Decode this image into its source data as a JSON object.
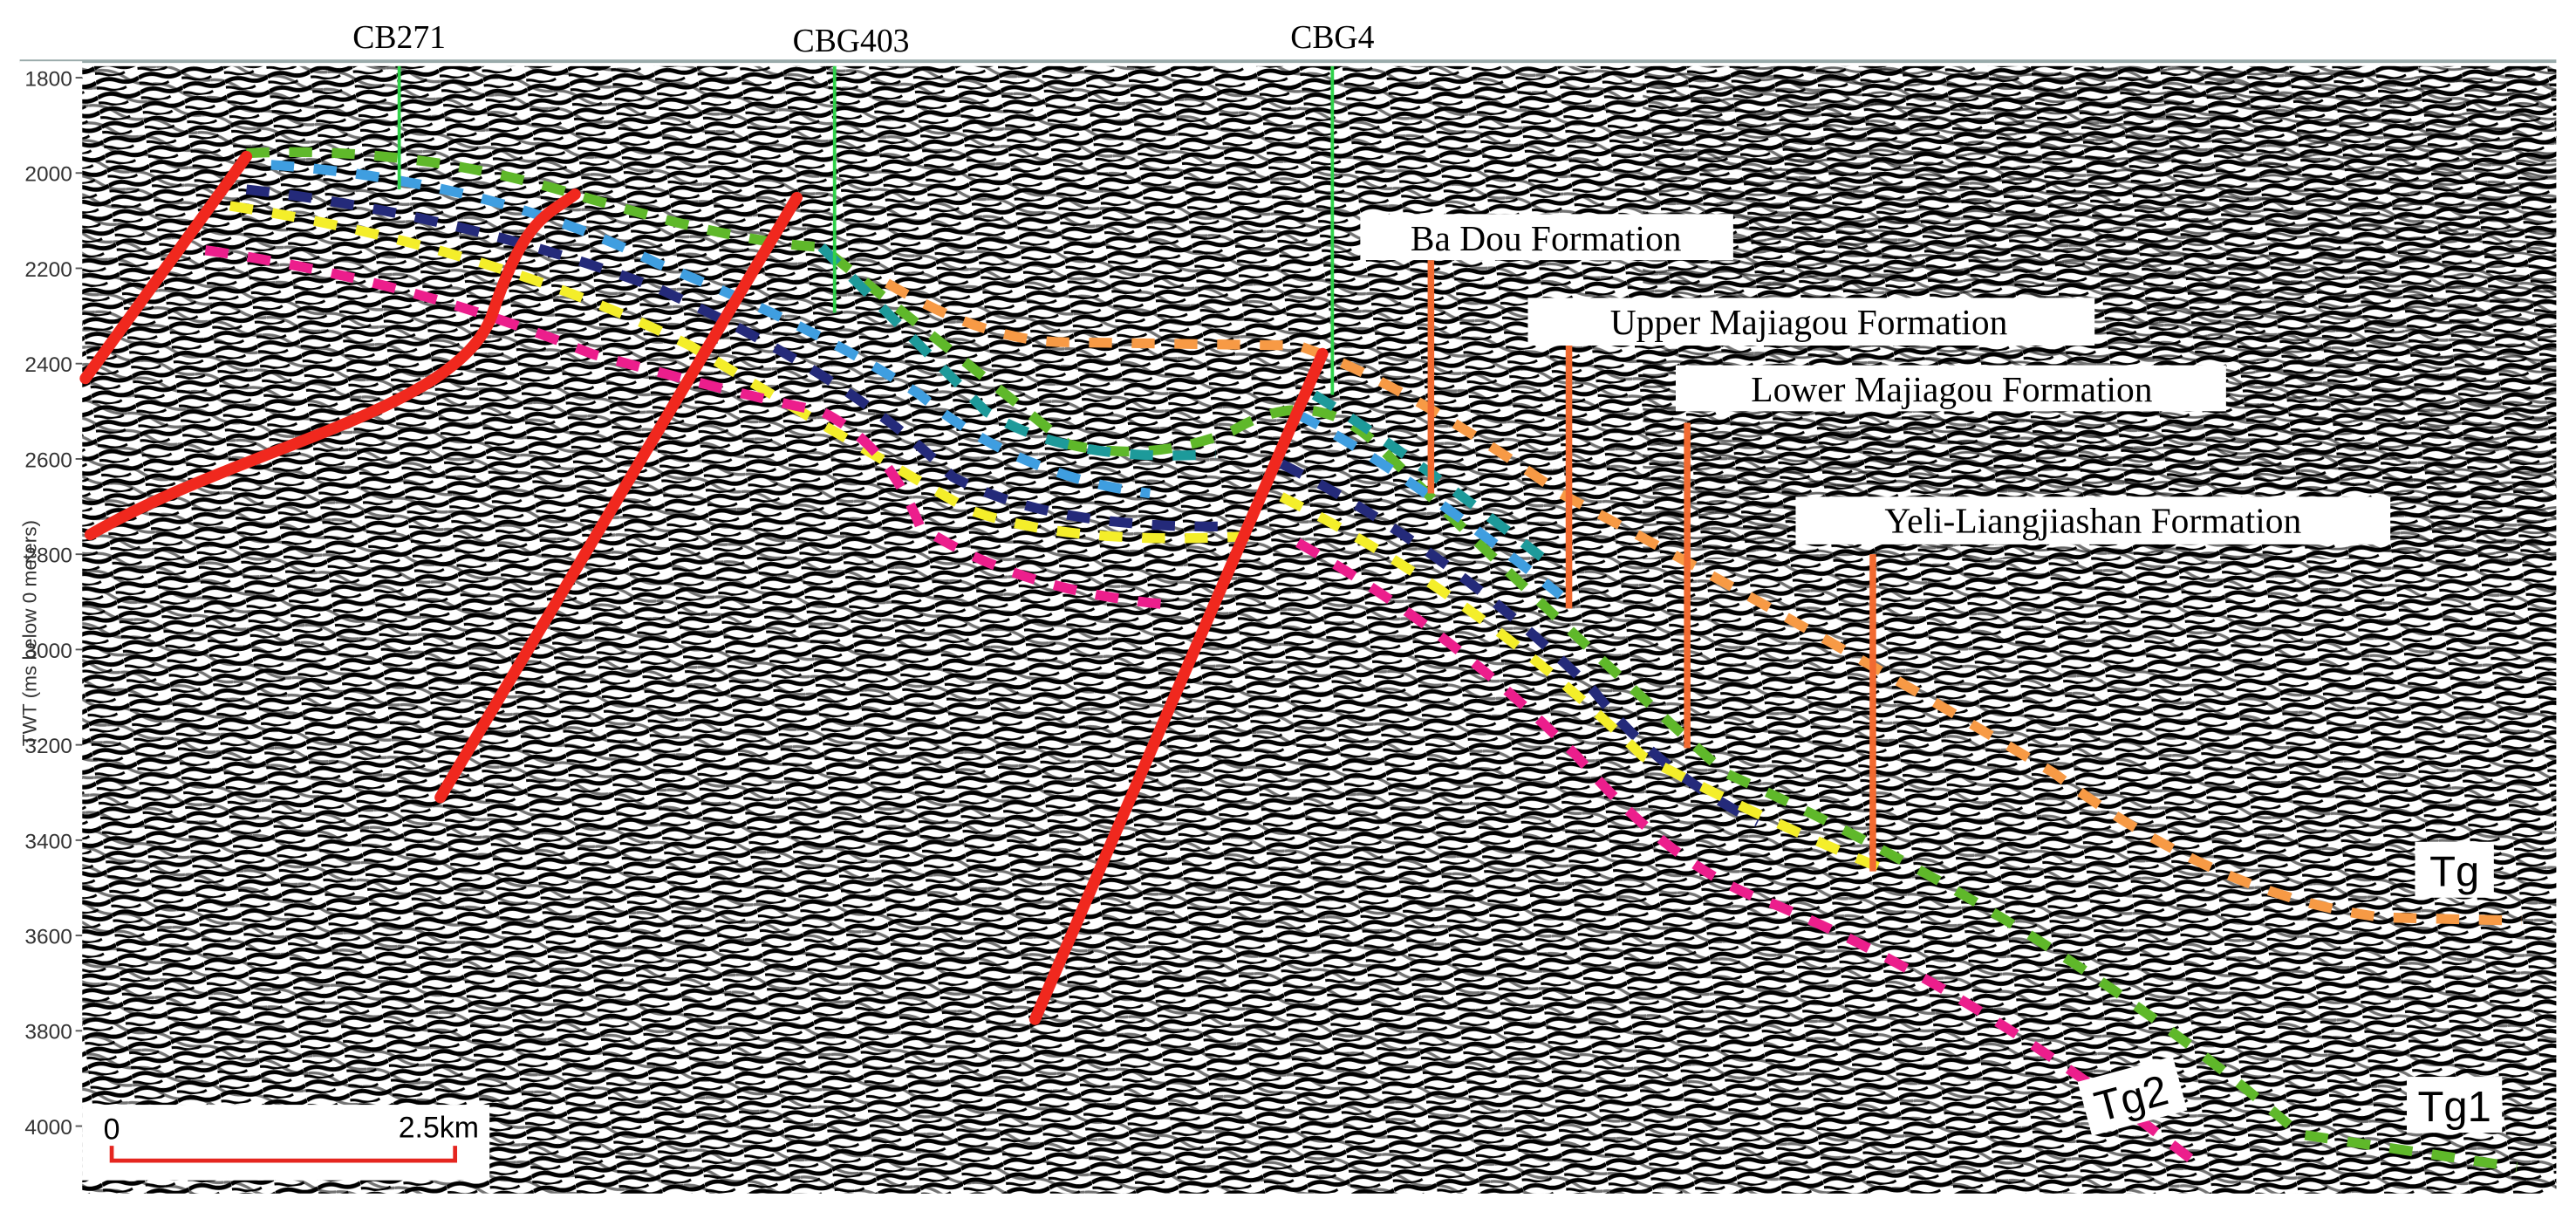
{
  "axis": {
    "label": "TWT (ms below 0 meters)",
    "ticks": [
      1800,
      2000,
      2200,
      2400,
      2600,
      2800,
      3000,
      3200,
      3400,
      3600,
      3800,
      4000
    ]
  },
  "wells": [
    "CB271",
    "CBG403",
    "CBG4"
  ],
  "formations": [
    "Ba Dou Formation",
    "Upper Majiagou Formation",
    "Lower Majiagou Formation",
    "Yeli-Liangjiashan  Formation"
  ],
  "horizons": [
    "Tg",
    "Tg1",
    "Tg2"
  ],
  "scale_bar": {
    "start": "0",
    "end": "2.5km"
  }
}
